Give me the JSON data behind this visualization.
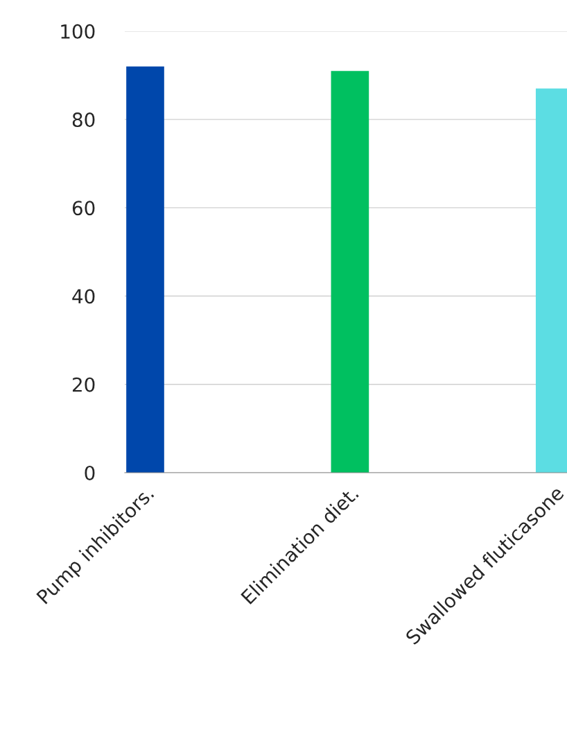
{
  "chart_data": {
    "type": "bar",
    "categories": [
      "Pump inhibitors.",
      "Elimination diet.",
      "Swallowed fluticasone"
    ],
    "values": [
      92,
      91,
      87
    ],
    "colors": [
      "#0047ab",
      "#00c060",
      "#5cdde3"
    ],
    "ylim": [
      0,
      100
    ],
    "yticks": [
      0,
      20,
      40,
      60,
      80,
      100
    ],
    "grid": "y"
  }
}
